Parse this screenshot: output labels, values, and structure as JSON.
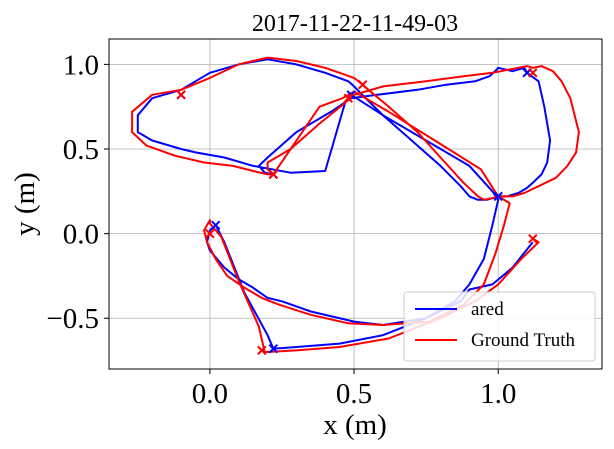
{
  "chart_data": {
    "type": "line",
    "title": "2017-11-22-11-49-03",
    "xlabel": "x (m)",
    "ylabel": "y (m)",
    "xlim": [
      -0.35,
      1.36
    ],
    "ylim": [
      -0.8,
      1.15
    ],
    "xticks": [
      0.0,
      0.5,
      1.0
    ],
    "xtick_labels": [
      "0.0",
      "0.5",
      "1.0"
    ],
    "yticks": [
      -0.5,
      0.0,
      0.5,
      1.0
    ],
    "ytick_labels": [
      "−0.5",
      "0.0",
      "0.5",
      "1.0"
    ],
    "grid": true,
    "legend_position": "lower-right",
    "series": [
      {
        "name": "ared",
        "color": "#0000ff",
        "x": [
          0.22,
          0.19,
          0.17,
          0.2,
          0.3,
          0.42,
          0.49,
          0.58,
          0.72,
          0.82,
          0.92,
          0.97,
          0.995,
          1.0,
          1.05,
          1.09,
          1.1,
          1.14,
          1.16,
          1.18,
          1.17,
          1.15,
          1.12,
          1.1,
          1.07,
          1.03,
          1.0,
          0.96,
          0.93,
          0.9,
          0.87,
          0.8,
          0.7,
          0.6,
          0.54,
          0.5,
          0.48,
          0.4,
          0.3,
          0.2,
          0.1,
          0.0,
          -0.1,
          -0.2,
          -0.25,
          -0.25,
          -0.2,
          -0.1,
          -0.05,
          0.05,
          0.15,
          0.28,
          0.4,
          0.47,
          0.49,
          0.6,
          0.75,
          0.9,
          0.98,
          1.0,
          0.98,
          0.95,
          0.9,
          0.85,
          0.75,
          0.6,
          0.5,
          0.35,
          0.25,
          0.2,
          0.15,
          0.1,
          0.05,
          0.0,
          -0.01,
          0.0,
          0.02,
          0.05,
          0.12,
          0.2,
          0.22,
          0.3,
          0.45,
          0.6,
          0.75,
          0.87,
          0.9,
          0.98,
          1.05,
          1.12
        ],
        "y": [
          0.35,
          0.36,
          0.4,
          0.45,
          0.6,
          0.72,
          0.8,
          0.82,
          0.85,
          0.88,
          0.9,
          0.93,
          0.97,
          0.98,
          0.96,
          0.98,
          0.95,
          0.9,
          0.75,
          0.55,
          0.42,
          0.35,
          0.3,
          0.27,
          0.24,
          0.22,
          0.22,
          0.2,
          0.2,
          0.22,
          0.28,
          0.4,
          0.55,
          0.7,
          0.8,
          0.87,
          0.9,
          0.95,
          1.0,
          1.03,
          1.0,
          0.95,
          0.85,
          0.8,
          0.7,
          0.6,
          0.55,
          0.5,
          0.48,
          0.45,
          0.4,
          0.36,
          0.37,
          0.78,
          0.82,
          0.7,
          0.55,
          0.4,
          0.25,
          0.2,
          0.05,
          -0.15,
          -0.3,
          -0.4,
          -0.5,
          -0.54,
          -0.52,
          -0.46,
          -0.4,
          -0.38,
          -0.32,
          -0.27,
          -0.2,
          -0.1,
          -0.05,
          0.02,
          0.05,
          -0.05,
          -0.35,
          -0.6,
          -0.68,
          -0.67,
          -0.65,
          -0.6,
          -0.5,
          -0.4,
          -0.33,
          -0.3,
          -0.2,
          -0.05
        ]
      },
      {
        "name": "Ground Truth",
        "color": "#ff0000",
        "x": [
          0.22,
          0.2,
          0.2,
          0.28,
          0.38,
          0.46,
          0.5,
          0.6,
          0.75,
          0.88,
          0.98,
          1.04,
          1.1,
          1.12,
          1.15,
          1.19,
          1.22,
          1.25,
          1.28,
          1.27,
          1.24,
          1.2,
          1.14,
          1.09,
          1.05,
          1.01,
          0.98,
          0.95,
          0.93,
          0.88,
          0.8,
          0.72,
          0.62,
          0.55,
          0.53,
          0.5,
          0.4,
          0.3,
          0.2,
          0.1,
          0.0,
          -0.1,
          -0.2,
          -0.27,
          -0.27,
          -0.22,
          -0.12,
          -0.02,
          0.08,
          0.15,
          0.2,
          0.22,
          0.38,
          0.46,
          0.5,
          0.62,
          0.78,
          0.94,
          1.0,
          1.04,
          1.02,
          0.99,
          0.95,
          0.88,
          0.76,
          0.6,
          0.48,
          0.35,
          0.24,
          0.18,
          0.12,
          0.06,
          0.02,
          -0.01,
          -0.02,
          0.0,
          0.0,
          0.04,
          0.1,
          0.17,
          0.19,
          0.3,
          0.45,
          0.62,
          0.8,
          0.92,
          1.0,
          1.08,
          1.14,
          1.12
        ],
        "y": [
          0.35,
          0.38,
          0.42,
          0.5,
          0.65,
          0.76,
          0.82,
          0.87,
          0.9,
          0.93,
          0.95,
          0.97,
          0.99,
          0.98,
          0.99,
          0.96,
          0.9,
          0.8,
          0.6,
          0.48,
          0.4,
          0.33,
          0.28,
          0.24,
          0.22,
          0.22,
          0.21,
          0.2,
          0.22,
          0.3,
          0.45,
          0.6,
          0.75,
          0.85,
          0.88,
          0.92,
          0.98,
          1.02,
          1.04,
          1.0,
          0.92,
          0.85,
          0.82,
          0.72,
          0.6,
          0.52,
          0.46,
          0.42,
          0.4,
          0.37,
          0.35,
          0.35,
          0.75,
          0.8,
          0.84,
          0.72,
          0.55,
          0.38,
          0.22,
          0.18,
          0.05,
          -0.12,
          -0.3,
          -0.42,
          -0.52,
          -0.54,
          -0.53,
          -0.48,
          -0.42,
          -0.38,
          -0.32,
          -0.25,
          -0.15,
          -0.05,
          0.02,
          0.08,
          0.06,
          -0.02,
          -0.28,
          -0.55,
          -0.7,
          -0.69,
          -0.67,
          -0.62,
          -0.5,
          -0.4,
          -0.3,
          -0.15,
          -0.05,
          -0.03
        ]
      }
    ],
    "markers": [
      {
        "series": "ared",
        "x": [
          0.22,
          -0.1,
          0.49,
          1.1,
          1.0,
          0.02,
          0.22
        ],
        "y": [
          0.35,
          0.82,
          0.82,
          0.95,
          0.22,
          0.05,
          -0.68
        ]
      },
      {
        "series": "Ground Truth",
        "x": [
          0.22,
          -0.1,
          0.48,
          0.53,
          1.12,
          1.12,
          0.0,
          0.18
        ],
        "y": [
          0.35,
          0.82,
          0.8,
          0.88,
          0.95,
          -0.03,
          0.0,
          -0.69
        ]
      }
    ]
  }
}
